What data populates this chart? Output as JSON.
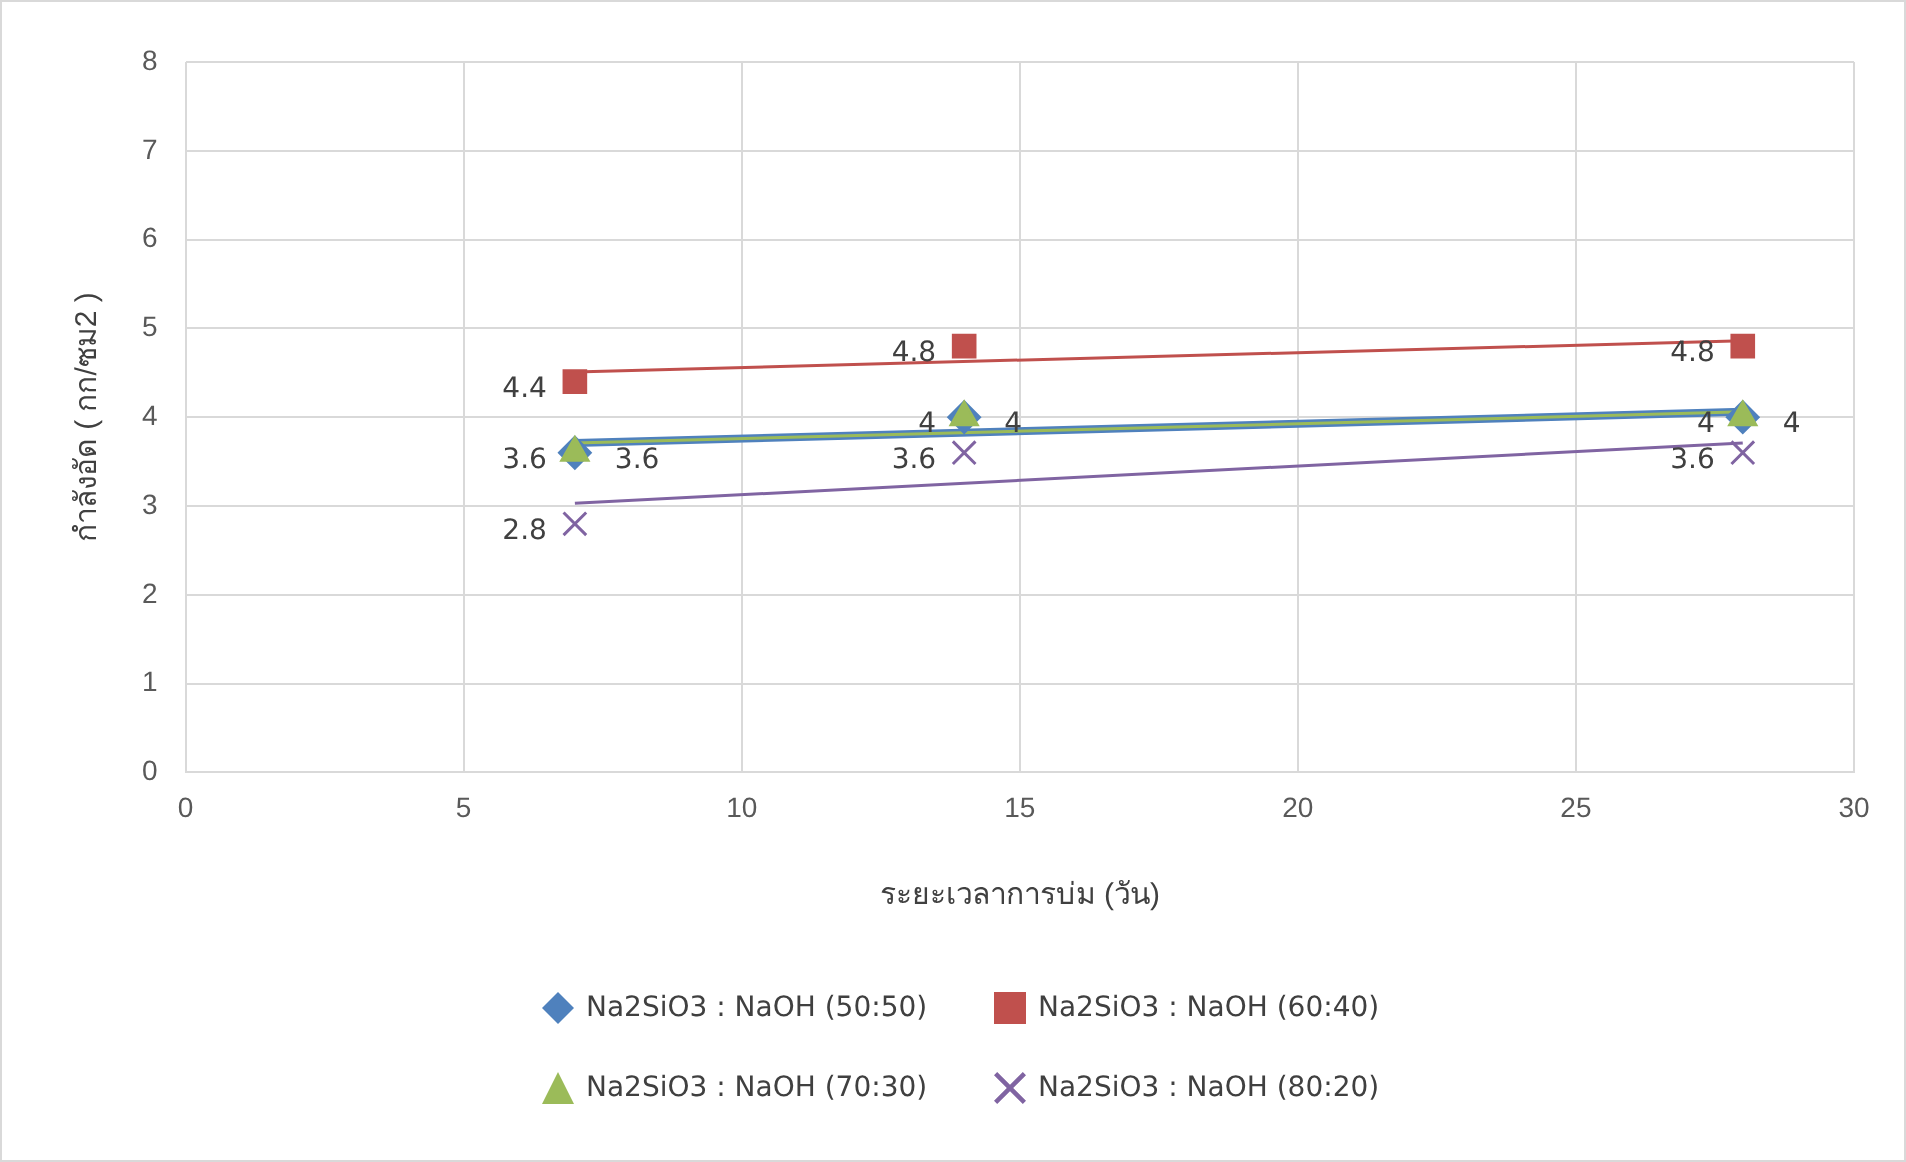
{
  "chart_data": {
    "type": "scatter",
    "xlabel": "ระยะเวลาการบ่ม (วัน)",
    "ylabel": "กำลังอัด ( กก/ซม2 )",
    "xlim": [
      0,
      30
    ],
    "xticks": [
      0,
      5,
      10,
      15,
      20,
      25,
      30
    ],
    "ylim": [
      0,
      8
    ],
    "yticks": [
      0,
      1,
      2,
      3,
      4,
      5,
      6,
      7,
      8
    ],
    "grid": true,
    "legend": "bottom",
    "series": [
      {
        "type": "line",
        "color": "#4f81bd",
        "x": [
          7,
          28
        ],
        "values": [
          3.71,
          4.06
        ],
        "marker": "none"
      },
      {
        "type": "line",
        "color": "#c0504d",
        "x": [
          7,
          28
        ],
        "values": [
          4.51,
          4.86
        ],
        "marker": "none"
      },
      {
        "type": "line",
        "color": "#8064a2",
        "x": [
          7,
          28
        ],
        "values": [
          3.03,
          3.71
        ],
        "marker": "none"
      },
      {
        "type": "line",
        "color": "#9bbb59",
        "x": [
          7,
          28
        ],
        "values": [
          3.71,
          4.06
        ],
        "marker": "none"
      },
      {
        "type": "scatter",
        "name": "Na2SiO3 : NaOH (50:50)",
        "color": "#4f81bd",
        "x": [
          7,
          14,
          28
        ],
        "values": [
          3.6,
          4,
          4
        ],
        "value_labels": [
          "3.6",
          "4",
          "4"
        ],
        "marker": "diamond"
      },
      {
        "type": "scatter",
        "name": "Na2SiO3 : NaOH (60:40)",
        "color": "#c0504d",
        "x": [
          7,
          14,
          28
        ],
        "values": [
          4.4,
          4.8,
          4.8
        ],
        "value_labels": [
          "4.4",
          "4.8",
          "4.8"
        ],
        "marker": "square"
      },
      {
        "type": "scatter",
        "name": "Na2SiO3 : NaOH (70:30)",
        "color": "#9bbb59",
        "x": [
          7,
          14,
          28
        ],
        "values": [
          3.6,
          4,
          4
        ],
        "value_labels": [
          "3.6",
          "4",
          "4"
        ],
        "marker": "triangle"
      },
      {
        "type": "scatter",
        "name": "Na2SiO3 : NaOH (80:20)",
        "color": "#8064a2",
        "x": [
          7,
          14,
          28
        ],
        "values": [
          2.8,
          3.6,
          3.6
        ],
        "value_labels": [
          "2.8",
          "3.6",
          "3.6"
        ],
        "marker": "cross"
      }
    ]
  }
}
